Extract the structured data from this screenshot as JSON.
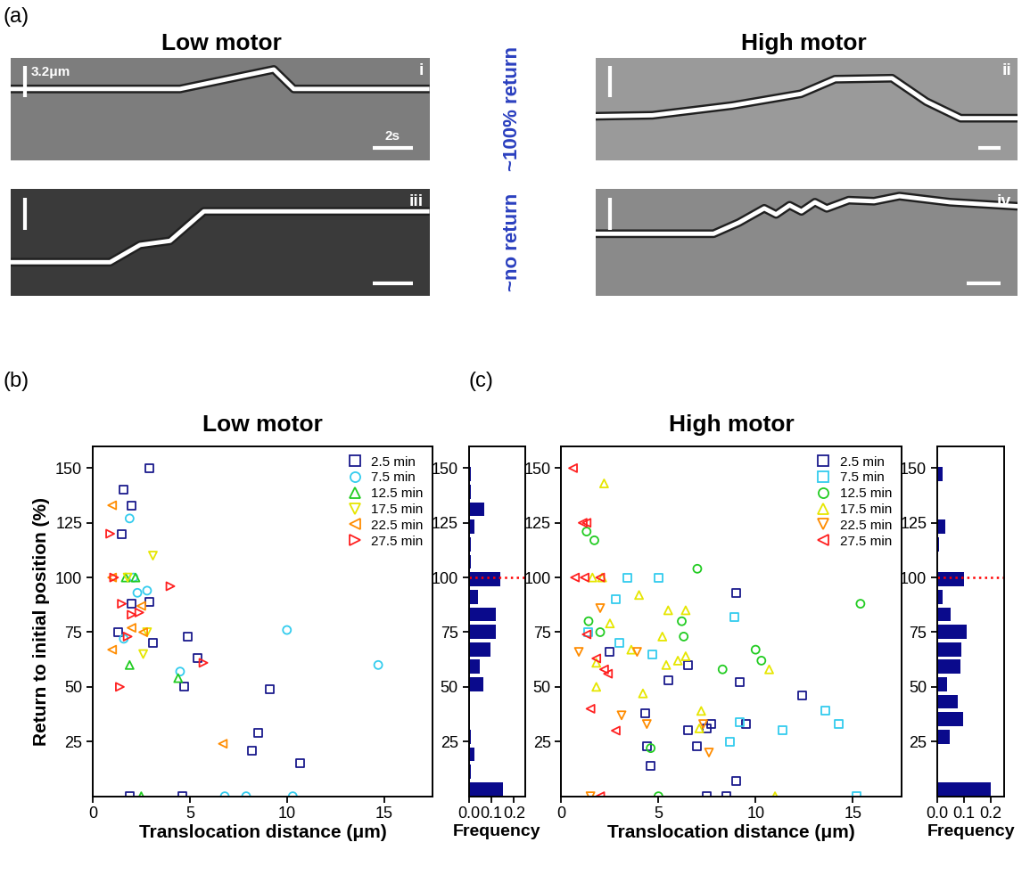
{
  "panel_labels": [
    "(a)",
    "(b)",
    "(c)"
  ],
  "column_titles": [
    "Low motor",
    "High motor"
  ],
  "row_labels": [
    "~100% return",
    "~no return"
  ],
  "scale_bars": {
    "length_um": 3.2,
    "label_um": "3.2μm",
    "length_s": 2,
    "label_s": "2s"
  },
  "kymographs": [
    {
      "panel": "i",
      "tlim": [
        0,
        21
      ],
      "ylim": [
        0,
        10.5
      ],
      "t": [
        0,
        8.5,
        13.2,
        14.2,
        21
      ],
      "position": [
        7.3,
        7.3,
        9.3,
        7.3,
        7.3
      ]
    },
    {
      "panel": "ii",
      "tlim": [
        0,
        37
      ],
      "ylim": [
        0,
        10.5
      ],
      "t": [
        0,
        5,
        12,
        18,
        21,
        26,
        29,
        32,
        37
      ],
      "position": [
        4.5,
        4.6,
        5.6,
        6.8,
        8.3,
        8.4,
        6.0,
        4.3,
        4.3
      ]
    },
    {
      "panel": "iii",
      "tlim": [
        0,
        21
      ],
      "ylim": [
        0,
        10.5
      ],
      "t": [
        0,
        5,
        6.5,
        8,
        9.7,
        21
      ],
      "position": [
        3.3,
        3.3,
        5.0,
        5.4,
        8.3,
        8.3
      ]
    },
    {
      "panel": "iv",
      "tlim": [
        0,
        25
      ],
      "ylim": [
        0,
        10.5
      ],
      "t": [
        0,
        7,
        8.5,
        10,
        10.7,
        11.5,
        12.2,
        13,
        13.7,
        15,
        16.5,
        18,
        21,
        25
      ],
      "position": [
        6.1,
        6.1,
        7.2,
        8.6,
        8.0,
        8.9,
        8.3,
        9.2,
        8.6,
        9.4,
        9.3,
        9.8,
        9.2,
        8.8
      ]
    }
  ],
  "chart_data": [
    {
      "type": "scatter",
      "title": "Low motor",
      "x_label": "Translocation distance (μm)",
      "y_label": "Return to initial position (%)",
      "xlim": [
        0,
        17.5
      ],
      "ylim": [
        0,
        160
      ],
      "xticks": [
        0,
        5,
        10,
        15
      ],
      "yticks": [
        25,
        50,
        75,
        100,
        125,
        150
      ],
      "legend": "upper right",
      "series": [
        {
          "name": "2.5 min",
          "color": "#1a1a8c",
          "marker": "square",
          "x": [
            2.9,
            1.6,
            2.0,
            1.5,
            1.3,
            2.9,
            3.1,
            4.9,
            4.7,
            5.4,
            9.1,
            8.5,
            8.2,
            10.7,
            1.9,
            4.6,
            2.0
          ],
          "values": [
            150,
            140,
            133,
            120,
            75,
            89,
            70,
            73,
            50,
            63,
            49,
            29,
            21,
            15,
            0,
            0,
            88
          ]
        },
        {
          "name": "7.5 min",
          "color": "#33ccee",
          "marker": "circle",
          "x": [
            1.9,
            2.8,
            2.3,
            10.0,
            4.5,
            14.7,
            1.6,
            7.9,
            10.3,
            6.8,
            2.1
          ],
          "values": [
            127,
            94,
            93,
            76,
            57,
            60,
            72,
            0,
            0,
            0,
            100
          ]
        },
        {
          "name": "12.5 min",
          "color": "#22cc22",
          "marker": "triangle_up",
          "x": [
            2.2,
            1.9,
            4.4,
            1.7,
            2.5
          ],
          "values": [
            100,
            60,
            54,
            100,
            0
          ]
        },
        {
          "name": "17.5 min",
          "color": "#e6e600",
          "marker": "triangle_down",
          "x": [
            3.1,
            2.6,
            2.8,
            1.8
          ],
          "values": [
            110,
            65,
            75,
            100
          ]
        },
        {
          "name": "22.5 min",
          "color": "#ff8c00",
          "marker": "triangle_left",
          "x": [
            1.0,
            1.0,
            1.0,
            2.0,
            2.6,
            6.7,
            2.5
          ],
          "values": [
            133,
            100,
            67,
            77,
            75,
            24,
            87
          ]
        },
        {
          "name": "27.5 min",
          "color": "#ff2020",
          "marker": "triangle_right",
          "x": [
            0.9,
            1.1,
            1.5,
            2.0,
            1.8,
            4.0,
            1.4,
            5.7,
            2.4
          ],
          "values": [
            120,
            100,
            88,
            83,
            73,
            96,
            50,
            61,
            84
          ]
        }
      ]
    },
    {
      "type": "histogram",
      "orientation": "horizontal",
      "x_label": "Frequency",
      "color": "#0a0a8c",
      "xlim": [
        0,
        0.25
      ],
      "ylim": [
        0,
        160
      ],
      "xticks": [
        {
          "value": 0,
          "label": "0.0"
        },
        0.1,
        0.2
      ],
      "yticks": [
        25,
        50,
        75,
        100,
        125,
        150
      ],
      "bins": [
        0,
        8,
        16,
        24,
        32,
        40,
        48,
        56,
        64,
        72,
        80,
        88,
        96,
        104,
        112,
        120,
        128,
        136,
        144,
        152,
        160
      ],
      "counts": [
        0.15,
        0.01,
        0.025,
        0.01,
        0,
        0,
        0.065,
        0.05,
        0.095,
        0.12,
        0.12,
        0.04,
        0.14,
        0.01,
        0.01,
        0.025,
        0.07,
        0.01,
        0.01,
        0
      ],
      "reference_line": {
        "value": 100,
        "color": "#ff0000",
        "line_style": "dotted"
      }
    },
    {
      "type": "scatter",
      "title": "High motor",
      "x_label": "Translocation distance (μm)",
      "xlim": [
        0,
        17.5
      ],
      "ylim": [
        0,
        160
      ],
      "xticks": [
        0,
        5,
        10,
        15
      ],
      "yticks": [
        25,
        50,
        75,
        100,
        125,
        150
      ],
      "legend": "upper right",
      "series": [
        {
          "name": "2.5 min",
          "color": "#1a1a8c",
          "marker": "square",
          "x": [
            9.0,
            9.2,
            5.5,
            4.3,
            4.4,
            4.6,
            6.5,
            7.0,
            7.5,
            7.7,
            9.5,
            12.4,
            9.0,
            2.5,
            7.5,
            8.5,
            6.5
          ],
          "values": [
            93,
            52,
            53,
            38,
            23,
            14,
            30,
            23,
            31,
            33,
            33,
            46,
            7,
            66,
            0,
            0,
            60
          ]
        },
        {
          "name": "7.5 min",
          "color": "#33ccee",
          "marker": "square",
          "x": [
            3.4,
            5.0,
            2.8,
            4.7,
            8.9,
            9.2,
            11.4,
            13.6,
            14.3,
            1.4,
            15.2,
            8.7,
            3.0
          ],
          "values": [
            100,
            100,
            90,
            65,
            82,
            34,
            30,
            39,
            33,
            75,
            0,
            25,
            70
          ]
        },
        {
          "name": "12.5 min",
          "color": "#22cc22",
          "marker": "circle",
          "x": [
            1.3,
            1.7,
            1.4,
            2.0,
            7.0,
            6.2,
            6.3,
            8.3,
            10.3,
            10.0,
            15.4,
            4.6,
            5.0
          ],
          "values": [
            121,
            117,
            80,
            75,
            104,
            80,
            73,
            58,
            62,
            67,
            88,
            22,
            0
          ]
        },
        {
          "name": "17.5 min",
          "color": "#e6e600",
          "marker": "triangle_up",
          "x": [
            2.2,
            1.6,
            2.1,
            2.5,
            1.8,
            1.8,
            4.0,
            5.2,
            5.5,
            6.4,
            5.4,
            6.0,
            6.4,
            7.2,
            7.1,
            10.7,
            3.6,
            4.2,
            11.0
          ],
          "values": [
            143,
            100,
            100,
            79,
            61,
            50,
            92,
            73,
            85,
            85,
            60,
            62,
            64,
            39,
            31,
            58,
            67,
            47,
            0
          ]
        },
        {
          "name": "22.5 min",
          "color": "#ff8c00",
          "marker": "triangle_down",
          "x": [
            0.9,
            2.0,
            3.1,
            4.4,
            7.3,
            7.6,
            3.9,
            1.5
          ],
          "values": [
            66,
            86,
            37,
            33,
            33,
            20,
            66,
            0
          ]
        },
        {
          "name": "27.5 min",
          "color": "#ff2020",
          "marker": "triangle_left",
          "x": [
            0.6,
            1.1,
            1.3,
            1.2,
            2.0,
            0.7,
            1.3,
            1.8,
            2.4,
            2.2,
            1.5,
            2.8,
            2.0
          ],
          "values": [
            150,
            125,
            125,
            100,
            100,
            100,
            74,
            63,
            56,
            58,
            40,
            30,
            0
          ]
        }
      ]
    },
    {
      "type": "histogram",
      "orientation": "horizontal",
      "x_label": "Frequency",
      "color": "#0a0a8c",
      "xlim": [
        0,
        0.25
      ],
      "ylim": [
        0,
        160
      ],
      "xticks": [
        {
          "value": 0,
          "label": "0.0"
        },
        0.1,
        0.2
      ],
      "yticks": [
        25,
        50,
        75,
        100,
        125,
        150
      ],
      "bins": [
        0,
        8,
        16,
        24,
        32,
        40,
        48,
        56,
        64,
        72,
        80,
        88,
        96,
        104,
        112,
        120,
        128,
        136,
        144,
        152,
        160
      ],
      "counts": [
        0.2,
        0,
        0,
        0.045,
        0.095,
        0.075,
        0.035,
        0.085,
        0.09,
        0.11,
        0.05,
        0.02,
        0.1,
        0,
        0.005,
        0.03,
        0,
        0,
        0.02,
        0
      ],
      "reference_line": {
        "value": 100,
        "color": "#ff0000",
        "line_style": "dotted"
      }
    }
  ]
}
